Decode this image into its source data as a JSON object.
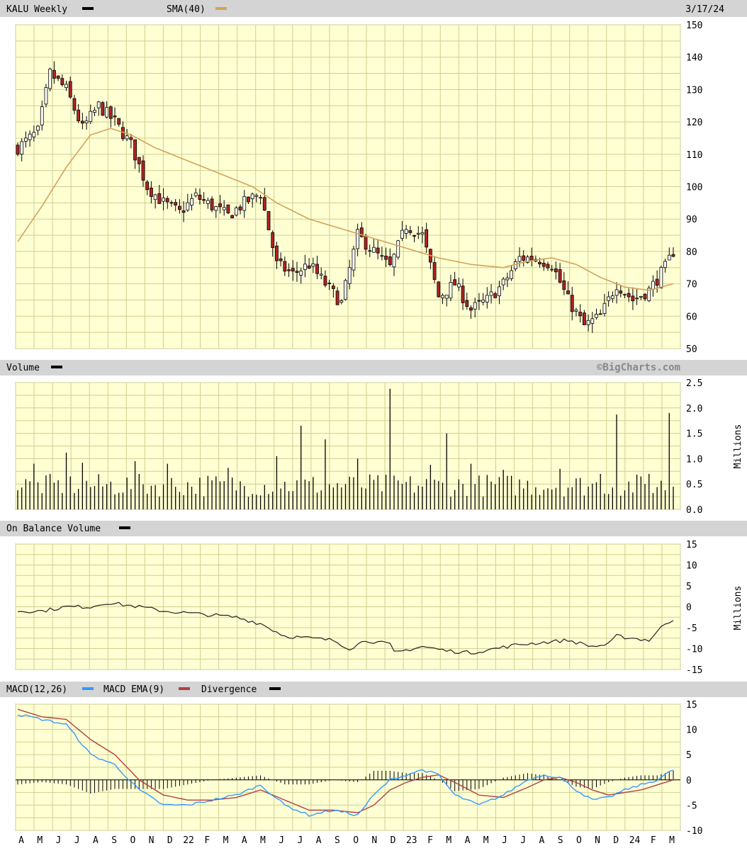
{
  "header": {
    "ticker_label": "KALU Weekly",
    "sma_label": "SMA(40)",
    "date": "3/17/24"
  },
  "volume_panel": {
    "title": "Volume",
    "watermark": "©BigCharts.com",
    "unit": "Millions"
  },
  "obv_panel": {
    "title": "On Balance Volume",
    "unit": "Millions"
  },
  "macd_panel": {
    "macd_label": "MACD(12,26)",
    "ema_label": "MACD EMA(9)",
    "div_label": "Divergence"
  },
  "colors": {
    "plot_bg": "#ffffd4",
    "grid": "#cfcf90",
    "header_bg": "#d4d4d4",
    "up": "#ffffff",
    "down": "#b22222",
    "sma": "#d4a25a",
    "macd": "#3399ff",
    "ema": "#b04040"
  },
  "x_axis_labels": [
    "A",
    "M",
    "J",
    "J",
    "A",
    "S",
    "O",
    "N",
    "D",
    "22",
    "F",
    "M",
    "A",
    "M",
    "J",
    "J",
    "A",
    "S",
    "O",
    "N",
    "D",
    "23",
    "F",
    "M",
    "A",
    "M",
    "J",
    "J",
    "A",
    "S",
    "O",
    "N",
    "D",
    "24",
    "F",
    "M"
  ],
  "chart_data": [
    {
      "type": "candlestick",
      "title": "KALU Weekly",
      "ylim": [
        50,
        150
      ],
      "yticks": [
        50,
        60,
        70,
        80,
        90,
        100,
        110,
        120,
        130,
        140,
        150
      ],
      "close_keypoints": [
        [
          0,
          112
        ],
        [
          5,
          117
        ],
        [
          8,
          135
        ],
        [
          12,
          130
        ],
        [
          16,
          118
        ],
        [
          20,
          125
        ],
        [
          24,
          120
        ],
        [
          28,
          113
        ],
        [
          32,
          100
        ],
        [
          36,
          95
        ],
        [
          40,
          92
        ],
        [
          44,
          97
        ],
        [
          48,
          94
        ],
        [
          52,
          91
        ],
        [
          56,
          95
        ],
        [
          60,
          98
        ],
        [
          64,
          76
        ],
        [
          68,
          73
        ],
        [
          72,
          76
        ],
        [
          76,
          70
        ],
        [
          80,
          64
        ],
        [
          84,
          85
        ],
        [
          88,
          80
        ],
        [
          92,
          75
        ],
        [
          96,
          88
        ],
        [
          100,
          85
        ],
        [
          104,
          66
        ],
        [
          108,
          70
        ],
        [
          112,
          62
        ],
        [
          116,
          65
        ],
        [
          120,
          70
        ],
        [
          124,
          78
        ],
        [
          128,
          78
        ],
        [
          132,
          76
        ],
        [
          136,
          65
        ],
        [
          140,
          57
        ],
        [
          144,
          60
        ],
        [
          148,
          70
        ],
        [
          152,
          65
        ],
        [
          156,
          68
        ],
        [
          160,
          75
        ],
        [
          162,
          80
        ]
      ],
      "sma_keypoints": [
        [
          0,
          83
        ],
        [
          6,
          94
        ],
        [
          12,
          106
        ],
        [
          18,
          116
        ],
        [
          23,
          118
        ],
        [
          28,
          116
        ],
        [
          34,
          112
        ],
        [
          42,
          108
        ],
        [
          50,
          104
        ],
        [
          58,
          100
        ],
        [
          64,
          95
        ],
        [
          72,
          90
        ],
        [
          80,
          87
        ],
        [
          88,
          84
        ],
        [
          96,
          81
        ],
        [
          104,
          78
        ],
        [
          112,
          76
        ],
        [
          120,
          75
        ],
        [
          126,
          77
        ],
        [
          132,
          78
        ],
        [
          138,
          76
        ],
        [
          144,
          72
        ],
        [
          150,
          69
        ],
        [
          156,
          68
        ],
        [
          162,
          70
        ]
      ],
      "n_weeks": 163
    },
    {
      "type": "bar",
      "title": "Volume",
      "ylabel": "Millions",
      "ylim": [
        0,
        2.5
      ],
      "yticks": [
        "0.0",
        "0.5",
        "1.0",
        "1.5",
        "2.0",
        "2.5"
      ],
      "base": 0.5,
      "spikes": [
        [
          4,
          0.9
        ],
        [
          12,
          1.12
        ],
        [
          16,
          0.92
        ],
        [
          29,
          0.95
        ],
        [
          37,
          0.9
        ],
        [
          52,
          0.82
        ],
        [
          64,
          1.05
        ],
        [
          70,
          1.65
        ],
        [
          76,
          1.38
        ],
        [
          84,
          1.0
        ],
        [
          92,
          2.38
        ],
        [
          102,
          0.88
        ],
        [
          106,
          1.5
        ],
        [
          112,
          0.9
        ],
        [
          120,
          0.78
        ],
        [
          134,
          0.8
        ],
        [
          144,
          0.7
        ],
        [
          148,
          1.87
        ],
        [
          156,
          0.7
        ],
        [
          161,
          1.9
        ]
      ]
    },
    {
      "type": "line",
      "title": "On Balance Volume",
      "ylabel": "Millions",
      "ylim": [
        -15,
        15
      ],
      "yticks": [
        "15",
        "10",
        "5",
        "0",
        "-5",
        "-10",
        "-15"
      ],
      "keypoints": [
        [
          0,
          -1
        ],
        [
          6,
          -1
        ],
        [
          12,
          0
        ],
        [
          18,
          0
        ],
        [
          22,
          1
        ],
        [
          26,
          0.5
        ],
        [
          30,
          0
        ],
        [
          36,
          -1
        ],
        [
          42,
          -1.5
        ],
        [
          48,
          -2
        ],
        [
          54,
          -2.5
        ],
        [
          60,
          -4
        ],
        [
          66,
          -7
        ],
        [
          72,
          -7.5
        ],
        [
          78,
          -8
        ],
        [
          82,
          -10
        ],
        [
          86,
          -8
        ],
        [
          92,
          -9
        ],
        [
          93,
          -11
        ],
        [
          100,
          -9.5
        ],
        [
          106,
          -10.5
        ],
        [
          112,
          -11
        ],
        [
          118,
          -10
        ],
        [
          124,
          -9
        ],
        [
          130,
          -8.5
        ],
        [
          136,
          -8
        ],
        [
          142,
          -9.5
        ],
        [
          146,
          -9
        ],
        [
          148,
          -7
        ],
        [
          152,
          -7.5
        ],
        [
          156,
          -8
        ],
        [
          160,
          -4
        ],
        [
          162,
          -3
        ]
      ]
    },
    {
      "type": "line",
      "title": "MACD(12,26)",
      "ylim": [
        -10,
        15
      ],
      "yticks": [
        "15",
        "10",
        "5",
        "0",
        "-5",
        "-10"
      ],
      "series": [
        {
          "name": "MACD(12,26)",
          "keypoints": [
            [
              0,
              13
            ],
            [
              6,
              12
            ],
            [
              12,
              11
            ],
            [
              18,
              5
            ],
            [
              24,
              3
            ],
            [
              30,
              -2
            ],
            [
              36,
              -5
            ],
            [
              42,
              -5
            ],
            [
              48,
              -4
            ],
            [
              54,
              -3
            ],
            [
              60,
              -1
            ],
            [
              66,
              -5
            ],
            [
              72,
              -7
            ],
            [
              78,
              -6
            ],
            [
              84,
              -7
            ],
            [
              88,
              -3
            ],
            [
              92,
              0
            ],
            [
              96,
              1
            ],
            [
              100,
              2
            ],
            [
              104,
              1
            ],
            [
              108,
              -3
            ],
            [
              114,
              -5
            ],
            [
              120,
              -3
            ],
            [
              126,
              0
            ],
            [
              130,
              1
            ],
            [
              134,
              0.5
            ],
            [
              138,
              -2
            ],
            [
              142,
              -4
            ],
            [
              146,
              -3.5
            ],
            [
              150,
              -2
            ],
            [
              154,
              -1
            ],
            [
              158,
              0
            ],
            [
              162,
              2
            ]
          ]
        },
        {
          "name": "MACD EMA(9)",
          "keypoints": [
            [
              0,
              14
            ],
            [
              6,
              12.5
            ],
            [
              12,
              12
            ],
            [
              18,
              8
            ],
            [
              24,
              5
            ],
            [
              30,
              0
            ],
            [
              36,
              -3
            ],
            [
              42,
              -4
            ],
            [
              48,
              -4
            ],
            [
              54,
              -3.5
            ],
            [
              60,
              -2
            ],
            [
              66,
              -4
            ],
            [
              72,
              -6
            ],
            [
              78,
              -6
            ],
            [
              84,
              -6.5
            ],
            [
              88,
              -5
            ],
            [
              92,
              -2
            ],
            [
              96,
              -0.5
            ],
            [
              100,
              0.5
            ],
            [
              104,
              1
            ],
            [
              108,
              -0.5
            ],
            [
              114,
              -3
            ],
            [
              120,
              -3.5
            ],
            [
              126,
              -1.5
            ],
            [
              130,
              0
            ],
            [
              134,
              0.5
            ],
            [
              138,
              -0.5
            ],
            [
              142,
              -2
            ],
            [
              146,
              -3
            ],
            [
              150,
              -2.5
            ],
            [
              154,
              -2
            ],
            [
              158,
              -1
            ],
            [
              162,
              0
            ]
          ]
        },
        {
          "name": "Divergence"
        }
      ]
    }
  ]
}
